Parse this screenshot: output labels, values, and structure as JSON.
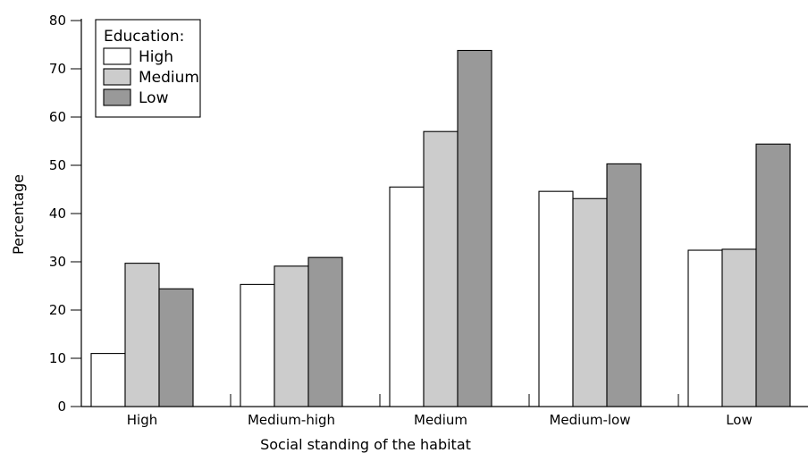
{
  "chart_data": {
    "type": "bar",
    "xlabel": "Social standing of the habitat",
    "ylabel": "Percentage",
    "ylim": [
      0,
      80
    ],
    "yticks": [
      0,
      10,
      20,
      30,
      40,
      50,
      60,
      70,
      80
    ],
    "grid": false,
    "categories": [
      "High",
      "Medium-high",
      "Medium",
      "Medium-low",
      "Low"
    ],
    "legend": {
      "title": "Education:",
      "placement": "top-left"
    },
    "series": [
      {
        "name": "High",
        "color": "#ffffff",
        "values": [
          11,
          25.3,
          45.5,
          44.6,
          32.4
        ]
      },
      {
        "name": "Medium",
        "color": "#cccccc",
        "values": [
          29.7,
          29.1,
          57,
          43.1,
          32.6
        ]
      },
      {
        "name": "Low",
        "color": "#999999",
        "values": [
          24.4,
          30.9,
          73.8,
          50.3,
          54.4
        ]
      }
    ]
  }
}
